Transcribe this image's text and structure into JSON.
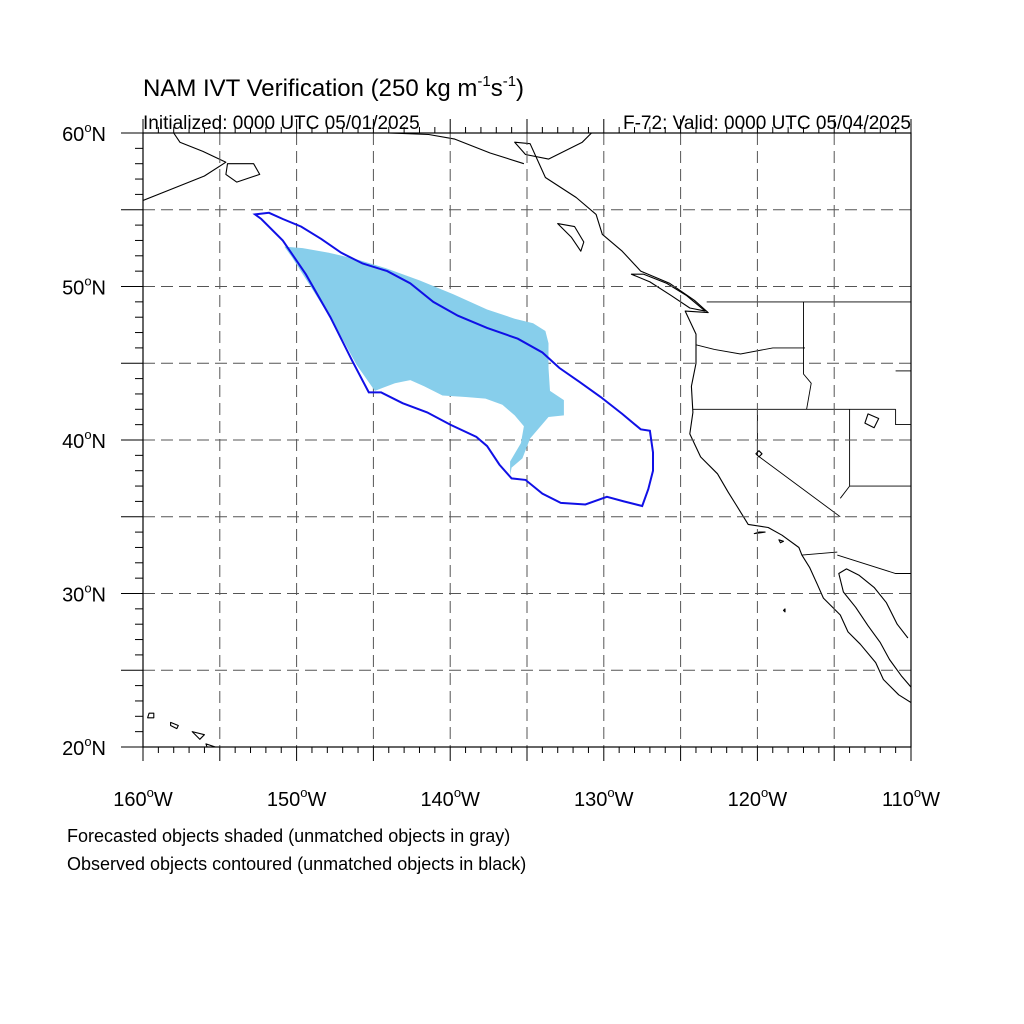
{
  "title_main": "NAM IVT Verification (250 kg m",
  "title_sup1": "-1",
  "title_mid": "s",
  "title_sup2": "-1",
  "title_close": ")",
  "initialized": "Initialized: 0000 UTC 05/01/2025",
  "valid": "F-72: Valid: 0000 UTC 05/04/2025",
  "footnote_1": "Forecasted objects shaded (unmatched objects in gray)",
  "footnote_2": "Observed objects contoured (unmatched objects in black)",
  "lon_labels": [
    "160",
    "150",
    "140",
    "130",
    "120",
    "110"
  ],
  "lat_labels": [
    "60",
    "50",
    "40",
    "30",
    "20"
  ],
  "lon_suffix": "W",
  "lat_suffix": "N",
  "degree": "o",
  "map": {
    "lon_range": [
      -160,
      -110
    ],
    "lat_range": [
      20,
      60
    ],
    "gridlines": "dashed every 5 degrees",
    "colors": {
      "forecast_fill": "#87ceeb",
      "observed_contour": "#1010e6",
      "land_outline": "#000000"
    }
  },
  "forecast_object_vertices": [
    [
      -150.8,
      52.6
    ],
    [
      -149.6,
      52.5
    ],
    [
      -147.9,
      52.2
    ],
    [
      -146.2,
      51.8
    ],
    [
      -144.2,
      51.2
    ],
    [
      -142.0,
      50.4
    ],
    [
      -139.8,
      49.5
    ],
    [
      -137.6,
      48.5
    ],
    [
      -135.8,
      47.9
    ],
    [
      -134.6,
      47.6
    ],
    [
      -133.8,
      47.1
    ],
    [
      -133.6,
      46.3
    ],
    [
      -133.6,
      44.7
    ],
    [
      -133.5,
      43.2
    ],
    [
      -132.6,
      42.6
    ],
    [
      -132.6,
      41.6
    ],
    [
      -133.6,
      41.5
    ],
    [
      -134.8,
      40.1
    ],
    [
      -135.3,
      38.8
    ],
    [
      -136.0,
      38.2
    ],
    [
      -136.1,
      37.7
    ],
    [
      -136.1,
      38.6
    ],
    [
      -135.4,
      39.8
    ],
    [
      -135.2,
      40.9
    ],
    [
      -135.8,
      41.6
    ],
    [
      -136.6,
      42.3
    ],
    [
      -137.7,
      42.7
    ],
    [
      -139.0,
      42.8
    ],
    [
      -140.5,
      42.9
    ],
    [
      -141.7,
      43.5
    ],
    [
      -142.6,
      43.9
    ],
    [
      -143.6,
      43.7
    ],
    [
      -144.9,
      43.2
    ],
    [
      -146.1,
      44.9
    ],
    [
      -147.4,
      47.3
    ],
    [
      -148.9,
      49.7
    ],
    [
      -150.3,
      51.9
    ]
  ],
  "observed_object_vertices": [
    [
      -152.7,
      54.7
    ],
    [
      -151.8,
      54.8
    ],
    [
      -150.9,
      54.4
    ],
    [
      -149.7,
      53.9
    ],
    [
      -148.4,
      53.1
    ],
    [
      -147.1,
      52.2
    ],
    [
      -145.7,
      51.5
    ],
    [
      -144.1,
      51.0
    ],
    [
      -142.6,
      50.2
    ],
    [
      -141.1,
      49.0
    ],
    [
      -139.5,
      48.1
    ],
    [
      -137.6,
      47.3
    ],
    [
      -135.6,
      46.6
    ],
    [
      -134.0,
      45.7
    ],
    [
      -132.9,
      44.7
    ],
    [
      -131.6,
      43.8
    ],
    [
      -130.2,
      42.8
    ],
    [
      -128.8,
      41.7
    ],
    [
      -127.6,
      40.7
    ],
    [
      -127.0,
      40.6
    ],
    [
      -126.8,
      39.2
    ],
    [
      -126.8,
      38.0
    ],
    [
      -127.1,
      36.8
    ],
    [
      -127.5,
      35.7
    ],
    [
      -128.7,
      36.0
    ],
    [
      -129.8,
      36.3
    ],
    [
      -131.2,
      35.8
    ],
    [
      -132.8,
      35.9
    ],
    [
      -134.0,
      36.5
    ],
    [
      -135.1,
      37.4
    ],
    [
      -136.0,
      37.5
    ],
    [
      -136.8,
      38.4
    ],
    [
      -137.6,
      39.6
    ],
    [
      -138.3,
      40.2
    ],
    [
      -140.0,
      41.0
    ],
    [
      -141.5,
      41.8
    ],
    [
      -143.1,
      42.4
    ],
    [
      -144.5,
      43.1
    ],
    [
      -145.3,
      43.1
    ],
    [
      -146.4,
      45.2
    ],
    [
      -147.8,
      48.0
    ],
    [
      -149.4,
      50.8
    ],
    [
      -150.9,
      53.0
    ],
    [
      -152.3,
      54.4
    ]
  ],
  "coastline_na": [
    [
      -130.8,
      60.0
    ],
    [
      -131.4,
      59.4
    ],
    [
      -133.6,
      58.3
    ],
    [
      -135.1,
      58.6
    ],
    [
      -135.8,
      59.4
    ],
    [
      -134.8,
      59.3
    ],
    [
      -133.8,
      57.1
    ],
    [
      -131.8,
      55.8
    ],
    [
      -130.5,
      54.7
    ],
    [
      -130.1,
      53.4
    ],
    [
      -128.8,
      52.3
    ],
    [
      -127.6,
      51.0
    ],
    [
      -125.7,
      50.2
    ],
    [
      -124.1,
      49.1
    ],
    [
      -123.2,
      48.3
    ],
    [
      -124.7,
      48.4
    ],
    [
      -124.0,
      46.9
    ],
    [
      -124.0,
      45.0
    ],
    [
      -124.3,
      43.5
    ],
    [
      -124.2,
      41.8
    ],
    [
      -124.4,
      40.4
    ],
    [
      -123.7,
      38.9
    ],
    [
      -122.6,
      37.8
    ],
    [
      -121.9,
      36.6
    ],
    [
      -121.4,
      35.8
    ],
    [
      -120.6,
      34.5
    ],
    [
      -119.3,
      34.3
    ],
    [
      -118.4,
      33.8
    ],
    [
      -117.3,
      33.0
    ],
    [
      -117.1,
      32.5
    ],
    [
      -116.6,
      31.7
    ],
    [
      -116.1,
      30.6
    ],
    [
      -115.7,
      29.7
    ],
    [
      -114.6,
      28.6
    ],
    [
      -114.1,
      27.5
    ],
    [
      -113.3,
      26.7
    ],
    [
      -112.3,
      25.5
    ],
    [
      -111.8,
      24.4
    ],
    [
      -110.8,
      23.4
    ],
    [
      -110.0,
      22.9
    ]
  ],
  "coastline_baja_east": [
    [
      -110.0,
      23.9
    ],
    [
      -110.6,
      24.6
    ],
    [
      -111.4,
      25.7
    ],
    [
      -112.0,
      26.8
    ],
    [
      -112.8,
      27.9
    ],
    [
      -113.6,
      29.1
    ],
    [
      -114.4,
      30.1
    ],
    [
      -114.7,
      31.3
    ],
    [
      -114.2,
      31.6
    ],
    [
      -113.4,
      31.2
    ],
    [
      -112.4,
      30.4
    ],
    [
      -111.6,
      29.4
    ],
    [
      -110.9,
      28.0
    ],
    [
      -110.2,
      27.1
    ]
  ],
  "coastline_alaska": [
    [
      -158.0,
      60.0
    ],
    [
      -157.6,
      59.4
    ],
    [
      -156.1,
      58.8
    ],
    [
      -154.6,
      58.1
    ],
    [
      -156.0,
      57.2
    ],
    [
      -158.0,
      56.4
    ],
    [
      -160.0,
      55.6
    ]
  ],
  "coastline_kodiak": [
    [
      -154.5,
      58.0
    ],
    [
      -152.8,
      58.0
    ],
    [
      -152.4,
      57.3
    ],
    [
      -153.9,
      56.8
    ],
    [
      -154.6,
      57.3
    ],
    [
      -154.5,
      58.0
    ]
  ],
  "coastline_gulf_alaska": [
    [
      -150.0,
      60.0
    ],
    [
      -148.7,
      60.2
    ],
    [
      -146.4,
      60.5
    ],
    [
      -144.0,
      60.0
    ],
    [
      -141.4,
      59.9
    ],
    [
      -139.7,
      59.6
    ],
    [
      -137.4,
      58.7
    ],
    [
      -135.2,
      58.0
    ]
  ],
  "coastline_hawaii": [
    [
      -159.6,
      22.2
    ],
    [
      -159.3,
      22.2
    ],
    [
      -159.3,
      21.9
    ],
    [
      -159.7,
      21.9
    ],
    [
      -159.6,
      22.2
    ]
  ],
  "coastline_hawaii_2": [
    [
      -158.2,
      21.6
    ],
    [
      -157.7,
      21.4
    ],
    [
      -157.8,
      21.2
    ],
    [
      -158.2,
      21.4
    ],
    [
      -158.2,
      21.6
    ]
  ],
  "coastline_hawaii_3": [
    [
      -156.8,
      21.0
    ],
    [
      -156.0,
      20.8
    ],
    [
      -156.3,
      20.5
    ],
    [
      -156.8,
      21.0
    ]
  ],
  "coastline_hawaii_4": [
    [
      -155.9,
      20.2
    ],
    [
      -155.0,
      19.9
    ],
    [
      -155.6,
      19.3
    ],
    [
      -155.9,
      20.2
    ]
  ],
  "coastline_vancouver_island": [
    [
      -128.2,
      50.8
    ],
    [
      -127.0,
      50.3
    ],
    [
      -125.6,
      49.4
    ],
    [
      -124.4,
      48.6
    ],
    [
      -123.4,
      48.4
    ],
    [
      -124.6,
      49.4
    ],
    [
      -125.9,
      50.2
    ],
    [
      -127.4,
      50.8
    ],
    [
      -128.2,
      50.8
    ]
  ],
  "coastline_haida_gwaii": [
    [
      -133.0,
      54.1
    ],
    [
      -132.1,
      53.2
    ],
    [
      -131.5,
      52.3
    ],
    [
      -131.3,
      52.9
    ],
    [
      -131.9,
      53.9
    ],
    [
      -133.0,
      54.1
    ]
  ],
  "state_borders": [
    [
      [
        -123.3,
        49.0
      ],
      [
        -110.0,
        49.0
      ]
    ],
    [
      [
        -124.0,
        46.2
      ],
      [
        -122.8,
        45.9
      ],
      [
        -121.1,
        45.6
      ],
      [
        -119.0,
        46.0
      ],
      [
        -116.9,
        46.0
      ]
    ],
    [
      [
        -117.0,
        49.0
      ],
      [
        -117.0,
        44.3
      ],
      [
        -116.5,
        43.7
      ],
      [
        -116.8,
        42.0
      ]
    ],
    [
      [
        -124.2,
        42.0
      ],
      [
        -111.0,
        42.0
      ]
    ],
    [
      [
        -120.0,
        42.0
      ],
      [
        -120.0,
        39.0
      ],
      [
        -114.6,
        35.0
      ]
    ],
    [
      [
        -114.0,
        42.0
      ],
      [
        -114.0,
        37.0
      ],
      [
        -114.6,
        36.2
      ]
    ],
    [
      [
        -114.8,
        32.7
      ],
      [
        -117.1,
        32.5
      ]
    ],
    [
      [
        -114.8,
        32.5
      ],
      [
        -111.0,
        31.3
      ],
      [
        -110.0,
        31.3
      ]
    ],
    [
      [
        -111.0,
        44.5
      ],
      [
        -110.0,
        44.5
      ]
    ],
    [
      [
        -111.0,
        42.0
      ],
      [
        -111.0,
        41.0
      ],
      [
        -110.0,
        41.0
      ]
    ],
    [
      [
        -114.0,
        37.0
      ],
      [
        -110.0,
        37.0
      ]
    ]
  ],
  "lakes": [
    [
      [
        -112.8,
        41.7
      ],
      [
        -112.1,
        41.4
      ],
      [
        -112.4,
        40.8
      ],
      [
        -113.0,
        41.1
      ],
      [
        -112.8,
        41.7
      ]
    ],
    [
      [
        -119.9,
        39.3
      ],
      [
        -119.7,
        39.1
      ],
      [
        -119.9,
        38.9
      ],
      [
        -120.1,
        39.1
      ],
      [
        -119.9,
        39.3
      ]
    ]
  ],
  "islands_socal": [
    [
      [
        -119.5,
        34.0
      ],
      [
        -119.9,
        34.0
      ],
      [
        -120.2,
        33.9
      ],
      [
        -119.5,
        34.0
      ]
    ],
    [
      [
        -118.5,
        33.3
      ],
      [
        -118.3,
        33.4
      ],
      [
        -118.6,
        33.5
      ],
      [
        -118.5,
        33.3
      ]
    ],
    [
      [
        -118.2,
        29.0
      ],
      [
        -118.3,
        28.9
      ],
      [
        -118.2,
        28.8
      ],
      [
        -118.2,
        29.0
      ]
    ]
  ]
}
